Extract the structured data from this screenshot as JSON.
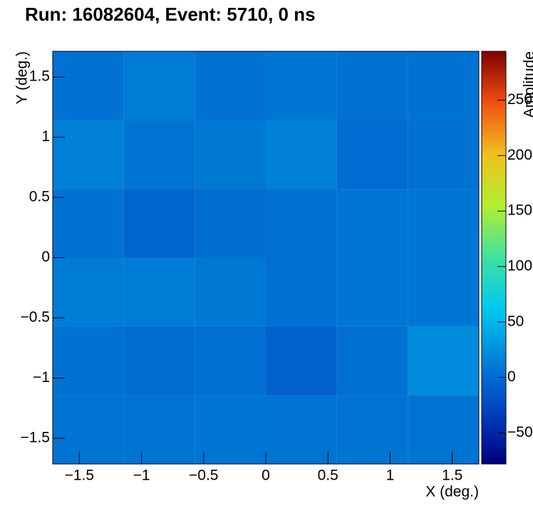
{
  "chart_data": {
    "type": "heatmap",
    "title": "Run: 16082604, Event: 5710, 0 ns",
    "x_label": "X (deg.)",
    "y_label": "Y (deg.)",
    "z_label": "Amplitude",
    "xbins": [
      -1.714,
      -1.143,
      -0.571,
      0,
      0.571,
      1.143,
      1.714
    ],
    "ybins": [
      -1.714,
      -1.143,
      -0.571,
      0,
      0.571,
      1.143,
      1.714
    ],
    "z": [
      [
        6,
        6,
        8,
        6,
        6,
        6
      ],
      [
        5,
        2,
        4,
        -8,
        4,
        22
      ],
      [
        12,
        12,
        10,
        4,
        8,
        8
      ],
      [
        5,
        -5,
        2,
        4,
        8,
        8
      ],
      [
        14,
        6,
        10,
        15,
        0,
        5
      ],
      [
        5,
        12,
        5,
        8,
        5,
        5
      ]
    ],
    "xlim": [
      -1.714,
      1.714
    ],
    "ylim": [
      -1.714,
      1.714
    ],
    "zlim": [
      -78,
      294
    ],
    "xticks": [
      {
        "value": -1.5,
        "label": "−1.5"
      },
      {
        "value": -1,
        "label": "−1"
      },
      {
        "value": -0.5,
        "label": "−0.5"
      },
      0,
      0.5,
      1,
      1.5
    ],
    "yticks": [
      {
        "value": -1.5,
        "label": "−1.5"
      },
      {
        "value": -1,
        "label": "−1"
      },
      {
        "value": -0.5,
        "label": "−0.5"
      },
      0,
      0.5,
      1,
      1.5
    ],
    "zticks": [
      {
        "value": -50,
        "label": "−50"
      },
      0,
      50,
      100,
      150,
      200,
      250
    ],
    "colorscale": [
      "#00007f",
      "#0040c0",
      "#0080d8",
      "#00c8f0",
      "#40e0a0",
      "#b0f030",
      "#f0c020",
      "#f05010",
      "#800000"
    ]
  }
}
